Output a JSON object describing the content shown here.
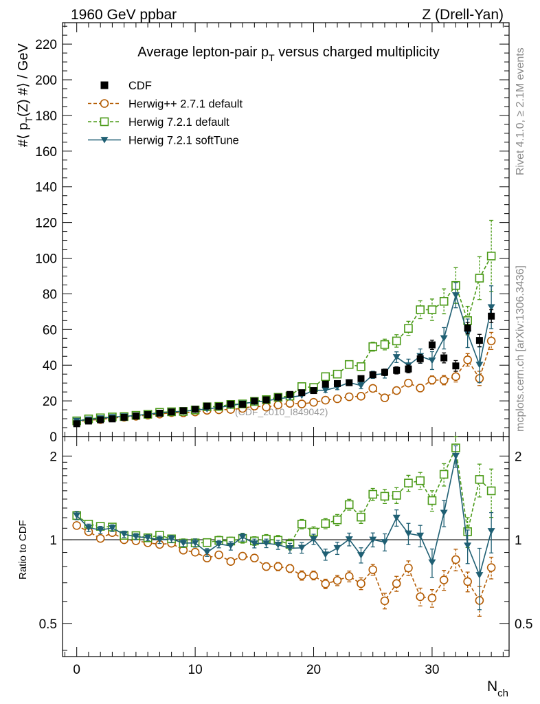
{
  "header": {
    "left": "1960 GeV ppbar",
    "right": "Z (Drell-Yan)"
  },
  "side": {
    "rivet": "Rivet 4.1.0, ≥ 2.1M events",
    "mcplots": "mcplots.cern.ch [arXiv:1306.3436]"
  },
  "watermark": "(CDF_2010_I849042)",
  "chart_data": [
    {
      "type": "scatter",
      "title": "Average lepton-pair pT versus charged multiplicity",
      "title_main": "Average lepton-pair p",
      "title_sub": "T",
      "title_rest": " versus charged multiplicity",
      "ylabel": "#⟨ p_T(Z) #⟩ / GeV",
      "ylabel_a": "#⟨ p",
      "ylabel_sub": "T",
      "ylabel_b": "(Z) #⟩ / GeV",
      "xlabel": "N",
      "xlabel_sub": "ch",
      "xlim": [
        -1.2,
        36.5
      ],
      "ylim": [
        0,
        232
      ],
      "yticks": [
        0,
        20,
        40,
        60,
        80,
        100,
        120,
        140,
        160,
        180,
        200,
        220
      ],
      "ytick_labels": [
        "0",
        "20",
        "40",
        "60",
        "80",
        "100",
        "120",
        "140",
        "160",
        "180",
        "200",
        "220"
      ],
      "legend": [
        "CDF",
        "Herwig++ 2.7.1 default",
        "Herwig 7.2.1 default",
        "Herwig 7.2.1 softTune"
      ],
      "x": [
        0,
        1,
        2,
        3,
        4,
        5,
        6,
        7,
        8,
        9,
        10,
        11,
        12,
        13,
        14,
        15,
        16,
        17,
        18,
        19,
        20,
        21,
        22,
        23,
        24,
        25,
        26,
        27,
        28,
        29,
        30,
        31,
        32,
        33,
        34,
        35
      ],
      "series": [
        {
          "name": "CDF",
          "color": "#000000",
          "marker": "square-filled",
          "values": [
            7.2,
            8.7,
            9.4,
            9.9,
            10.8,
            11.5,
            12.3,
            13.1,
            13.8,
            14.5,
            15.3,
            17.1,
            17.0,
            18.2,
            18.1,
            19.9,
            20.6,
            22.1,
            23.6,
            24.6,
            25.8,
            29.4,
            29.7,
            30.2,
            32.5,
            34.6,
            36.0,
            37.1,
            37.9,
            43.6,
            51.4,
            44.1,
            39.6,
            60.8,
            53.9,
            67.5
          ],
          "errors": [
            0.3,
            0.3,
            0.3,
            0.3,
            0.3,
            0.3,
            0.3,
            0.4,
            0.4,
            0.4,
            0.5,
            0.5,
            0.5,
            0.6,
            0.6,
            0.7,
            0.7,
            0.8,
            0.9,
            1.0,
            1.1,
            1.2,
            1.3,
            1.4,
            1.5,
            1.6,
            1.8,
            2.0,
            2.2,
            2.4,
            2.6,
            2.8,
            3.0,
            3.2,
            3.4,
            3.6
          ]
        },
        {
          "name": "Herwig++ 2.7.1 default",
          "color": "#b35a00",
          "marker": "circle-open",
          "dash": true,
          "values": [
            8.1,
            9.3,
            9.5,
            10.5,
            10.8,
            11.4,
            12.0,
            12.6,
            13.4,
            13.3,
            13.8,
            14.7,
            15.0,
            15.2,
            15.8,
            17.1,
            16.5,
            17.7,
            18.6,
            18.3,
            19.2,
            20.4,
            21.2,
            22.3,
            22.6,
            27.0,
            21.7,
            25.8,
            30.0,
            27.2,
            31.7,
            31.6,
            33.6,
            43.0,
            32.6,
            53.6
          ],
          "errors": [
            0.2,
            0.2,
            0.2,
            0.2,
            0.2,
            0.2,
            0.2,
            0.2,
            0.3,
            0.3,
            0.3,
            0.3,
            0.4,
            0.4,
            0.4,
            0.5,
            0.5,
            0.6,
            0.6,
            0.7,
            0.7,
            0.8,
            0.9,
            1.0,
            1.1,
            1.2,
            1.4,
            1.6,
            1.8,
            2.0,
            2.3,
            2.6,
            3.0,
            3.5,
            4.0,
            4.8
          ]
        },
        {
          "name": "Herwig 7.2.1 default",
          "color": "#4a9a17",
          "marker": "square-open",
          "dash": true,
          "values": [
            8.8,
            9.9,
            10.5,
            11.0,
            11.2,
            11.9,
            12.5,
            13.6,
            13.9,
            14.1,
            14.9,
            16.7,
            16.9,
            18.0,
            18.3,
            19.7,
            20.7,
            22.0,
            22.7,
            28.0,
            27.5,
            33.6,
            35.0,
            40.4,
            39.2,
            50.4,
            51.6,
            53.6,
            60.6,
            71.1,
            71.1,
            75.8,
            84.7,
            65.0,
            88.8,
            101.2
          ],
          "errors": [
            0.3,
            0.3,
            0.3,
            0.3,
            0.3,
            0.3,
            0.4,
            0.4,
            0.4,
            0.5,
            0.5,
            0.5,
            0.6,
            0.6,
            0.7,
            0.7,
            0.8,
            0.9,
            1.0,
            1.1,
            1.2,
            1.4,
            1.6,
            1.8,
            2.0,
            2.5,
            3.0,
            3.5,
            4.0,
            5.0,
            6.0,
            7.0,
            10.0,
            8.0,
            12.0,
            20.0
          ]
        },
        {
          "name": "Herwig 7.2.1 softTune",
          "color": "#1f5f73",
          "marker": "triangle-down-filled",
          "values": [
            8.8,
            9.6,
            10.2,
            10.9,
            11.3,
            11.8,
            12.5,
            13.1,
            13.9,
            14.1,
            14.9,
            15.4,
            16.4,
            17.3,
            18.5,
            19.3,
            20.0,
            21.2,
            22.0,
            23.0,
            25.9,
            26.0,
            27.7,
            30.3,
            28.6,
            34.6,
            35.3,
            44.5,
            39.9,
            45.1,
            42.6,
            55.1,
            79.2,
            57.9,
            40.2,
            72.5
          ],
          "errors": [
            0.3,
            0.3,
            0.3,
            0.3,
            0.3,
            0.3,
            0.3,
            0.4,
            0.4,
            0.4,
            0.5,
            0.5,
            0.5,
            0.6,
            0.6,
            0.7,
            0.7,
            0.8,
            0.9,
            1.0,
            1.1,
            1.2,
            1.4,
            1.6,
            1.8,
            2.0,
            2.5,
            3.0,
            3.5,
            4.0,
            5.0,
            6.0,
            7.0,
            8.0,
            10.0,
            12.0
          ]
        }
      ]
    },
    {
      "type": "scatter",
      "title": "Ratio to CDF",
      "ylabel": "Ratio to CDF",
      "xlim": [
        -1.2,
        36.5
      ],
      "ylim": [
        0.38,
        2.35
      ],
      "yscale": "log",
      "xticks": [
        0,
        10,
        20,
        30
      ],
      "xtick_labels": [
        "0",
        "10",
        "20",
        "30"
      ],
      "yticks": [
        0.5,
        1,
        2
      ],
      "ytick_labels": [
        "0.5",
        "1",
        "2"
      ],
      "reference_line": 1
    }
  ]
}
